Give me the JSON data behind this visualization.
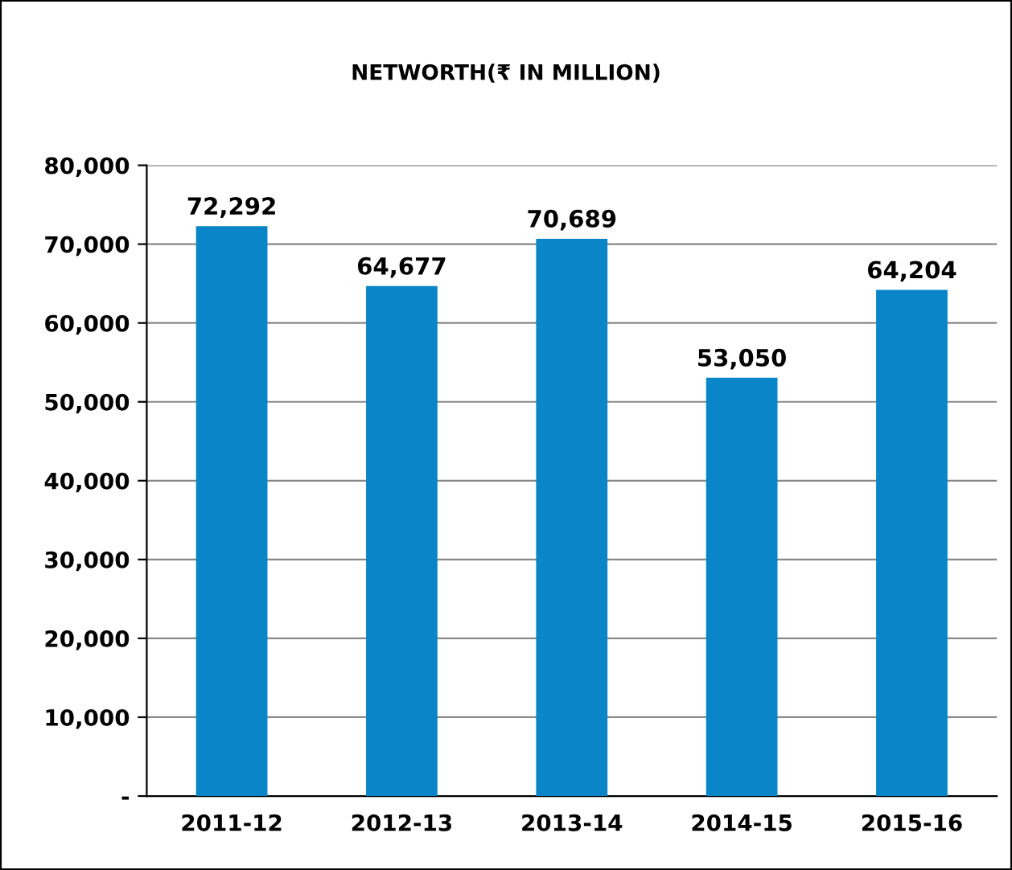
{
  "chart_data": {
    "type": "bar",
    "title": "NETWORTH(₹ IN MILLION)",
    "categories": [
      "2011-12",
      "2012-13",
      "2013-14",
      "2014-15",
      "2015-16"
    ],
    "values": [
      72292,
      64677,
      70689,
      53050,
      64204
    ],
    "color": "#0a86c8",
    "value_labels": [
      "72,292",
      "64,677",
      "70,689",
      "53,050",
      "64,204"
    ],
    "ylim": [
      0,
      80000
    ],
    "yticks": [
      {
        "value": 0,
        "label": "-"
      },
      {
        "value": 10000,
        "label": "10,000"
      },
      {
        "value": 20000,
        "label": "20,000"
      },
      {
        "value": 30000,
        "label": "30,000"
      },
      {
        "value": 40000,
        "label": "40,000"
      },
      {
        "value": 50000,
        "label": "50,000"
      },
      {
        "value": 60000,
        "label": "60,000"
      },
      {
        "value": 70000,
        "label": "70,000"
      },
      {
        "value": 80000,
        "label": "80,000"
      }
    ],
    "grid": "y"
  }
}
